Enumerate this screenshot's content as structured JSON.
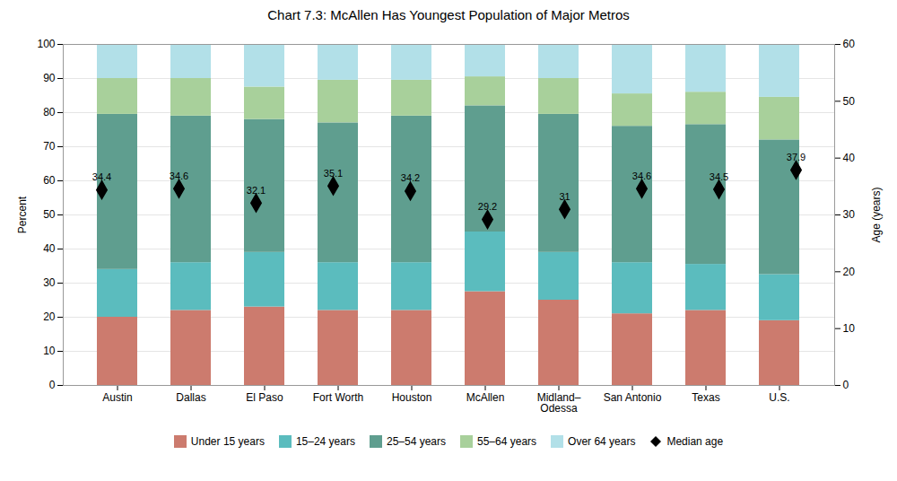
{
  "chart_data": {
    "type": "bar",
    "title": "Chart 7.3: McAllen Has Youngest Population of Major Metros",
    "categories": [
      "Austin",
      "Dallas",
      "El Paso",
      "Fort Worth",
      "Houston",
      "McAllen",
      "Midland–\nOdessa",
      "San Antonio",
      "Texas",
      "U.S."
    ],
    "stacked": true,
    "series": [
      {
        "name": "Under 15 years",
        "color": "#cc7b6e",
        "values": [
          20.0,
          22.0,
          23.0,
          22.0,
          22.0,
          27.5,
          25.0,
          21.0,
          22.0,
          19.0
        ]
      },
      {
        "name": "15–24 years",
        "color": "#5bbcbe",
        "values": [
          14.0,
          14.0,
          16.0,
          14.0,
          14.0,
          17.5,
          14.0,
          15.0,
          13.5,
          13.5
        ]
      },
      {
        "name": "25–54 years",
        "color": "#5f9e8f",
        "values": [
          45.5,
          43.0,
          39.0,
          41.0,
          43.0,
          37.0,
          40.5,
          40.0,
          41.0,
          39.5
        ]
      },
      {
        "name": "55–64 years",
        "color": "#a8d09b",
        "values": [
          10.5,
          11.0,
          9.5,
          12.5,
          10.5,
          8.5,
          10.5,
          9.5,
          9.5,
          12.5
        ]
      },
      {
        "name": "Over 64 years",
        "color": "#b2e0e8",
        "values": [
          10.0,
          10.0,
          12.5,
          10.5,
          10.5,
          9.5,
          10.0,
          14.5,
          14.0,
          15.5
        ]
      },
      {
        "name": "Median age",
        "type": "scatter",
        "marker": "diamond",
        "color": "black",
        "axis": "y2",
        "data_labels": true,
        "values": [
          34.4,
          34.6,
          32.1,
          35.1,
          34.2,
          29.2,
          31.0,
          34.6,
          34.5,
          37.9
        ]
      }
    ],
    "ylabel": "Percent",
    "y2label": "Age (years)",
    "ylim": [
      0,
      100
    ],
    "yticks": [
      0,
      10,
      20,
      30,
      40,
      50,
      60,
      70,
      80,
      90,
      100
    ],
    "y2lim": [
      0,
      60
    ],
    "y2ticks": [
      0,
      10,
      20,
      30,
      40,
      50,
      60
    ],
    "grid": true,
    "legend": "bottom"
  }
}
